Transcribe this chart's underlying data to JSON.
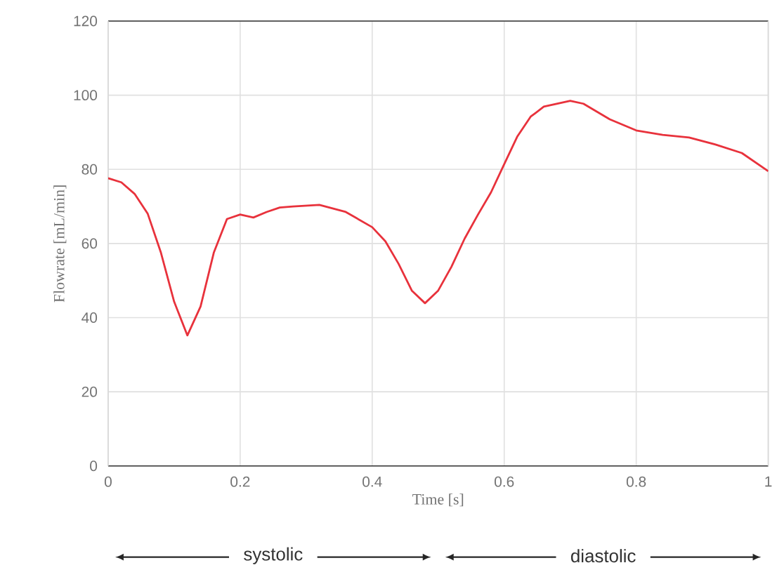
{
  "chart_data": {
    "type": "line",
    "xlabel": "Time [s]",
    "ylabel": "Flowrate [mL/min]",
    "x": [
      0,
      0.02,
      0.04,
      0.06,
      0.08,
      0.1,
      0.12,
      0.14,
      0.16,
      0.18,
      0.2,
      0.22,
      0.24,
      0.26,
      0.28,
      0.32,
      0.36,
      0.4,
      0.42,
      0.44,
      0.46,
      0.48,
      0.5,
      0.52,
      0.54,
      0.56,
      0.58,
      0.6,
      0.62,
      0.64,
      0.66,
      0.7,
      0.72,
      0.76,
      0.8,
      0.84,
      0.88,
      0.92,
      0.96,
      1.0
    ],
    "series": [
      {
        "color": "#e8323c",
        "values": [
          77.6,
          76.5,
          73.4,
          68,
          57.5,
          44.3,
          35.2,
          43,
          57.5,
          66.6,
          67.8,
          67,
          68.5,
          69.7,
          70,
          70.4,
          68.5,
          64.4,
          60.6,
          54.5,
          47.3,
          43.9,
          47.3,
          53.7,
          61.3,
          67.7,
          73.8,
          81.4,
          88.9,
          94.2,
          96.9,
          98.5,
          97.7,
          93.5,
          90.5,
          89.3,
          88.6,
          86.7,
          84.4,
          79.5
        ]
      }
    ],
    "xlim": [
      0,
      1
    ],
    "xticks": [
      0,
      0.2,
      0.4,
      0.6,
      0.8,
      1
    ],
    "ylim": [
      0,
      120
    ],
    "yticks": [
      0,
      20,
      40,
      60,
      80,
      100,
      120
    ],
    "grid": true,
    "marker": "none",
    "line_style": "solid",
    "annotations": [
      "systolic",
      "diastolic"
    ]
  }
}
